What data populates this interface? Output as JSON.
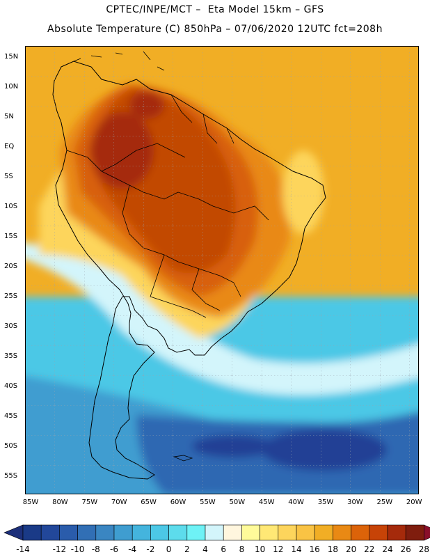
{
  "header": {
    "line1": "CPTEC/INPE/MCT –  Eta Model 15km – GFS",
    "line2": "Absolute Temperature (C) 850hPa – 07/06/2020 12UTC fct=208h"
  },
  "latitude_labels": [
    "15N",
    "10N",
    "5N",
    "EQ",
    "5S",
    "10S",
    "15S",
    "20S",
    "25S",
    "30S",
    "35S",
    "40S",
    "45S",
    "50S",
    "55S"
  ],
  "longitude_labels": [
    "85W",
    "80W",
    "75W",
    "70W",
    "65W",
    "60W",
    "55W",
    "50W",
    "45W",
    "40W",
    "35W",
    "30W",
    "25W",
    "20W"
  ],
  "colorbar": {
    "labels": [
      "-14",
      "-12",
      "-10",
      "-8",
      "-6",
      "-4",
      "-2",
      "0",
      "2",
      "4",
      "6",
      "8",
      "10",
      "12",
      "14",
      "16",
      "18",
      "20",
      "22",
      "24",
      "26",
      "28"
    ],
    "colors": [
      "#1a3a87",
      "#22479a",
      "#2a5cab",
      "#316fb5",
      "#3a86c2",
      "#3f9dd0",
      "#44b4dd",
      "#4cc8e6",
      "#5ddcec",
      "#6ef2f6",
      "#d3f5fb",
      "#fff6de",
      "#fffb9a",
      "#ffe875",
      "#fdd55c",
      "#f9c344",
      "#f1ae25",
      "#e98914",
      "#dc6309",
      "#c74307",
      "#a52a0b",
      "#7f1d0e"
    ],
    "low_color": "#1c2f7a",
    "high_color": "#8a0f2a"
  },
  "field_colors": {
    "very_cold": "#223f95",
    "cold": "#2f68b2",
    "cool": "#3f9cd0",
    "cyan": "#4cc8e6",
    "pale_cyan": "#9fe6f6",
    "very_pale": "#d3f5fb",
    "light_yellow": "#fff3b0",
    "yellow": "#fdd55c",
    "gold": "#f1ae25",
    "orange": "#e98914",
    "dark_orange": "#d8600a",
    "red_brown": "#c24806",
    "brown": "#a52a0b"
  }
}
